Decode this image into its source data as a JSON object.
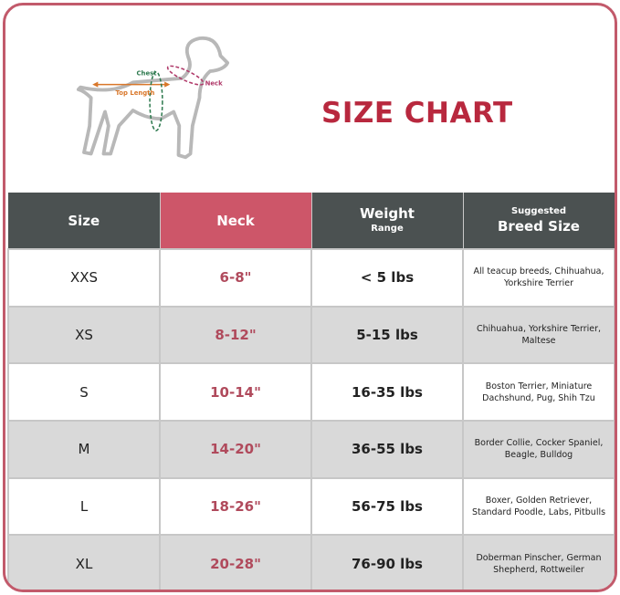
{
  "title": "SIZE CHART",
  "diagram": {
    "chest": "Chest",
    "neck": "Neck",
    "top_length": "Top Length",
    "colors": {
      "chest": "#2e7a4f",
      "neck": "#b03a6a",
      "top_length": "#d9772a",
      "outline": "#b8b8b8"
    }
  },
  "header": {
    "size": "Size",
    "neck": "Neck",
    "weight": "Weight",
    "weight_sub": "Range",
    "breed_sub": "Suggested",
    "breed": "Breed Size"
  },
  "rows": [
    {
      "size": "XXS",
      "neck": "6-8\"",
      "weight": "< 5 lbs",
      "breed": "All teacup breeds, Chihuahua, Yorkshire Terrier"
    },
    {
      "size": "XS",
      "neck": "8-12\"",
      "weight": "5-15 lbs",
      "breed": "Chihuahua, Yorkshire Terrier, Maltese"
    },
    {
      "size": "S",
      "neck": "10-14\"",
      "weight": "16-35 lbs",
      "breed": "Boston Terrier, Miniature Dachshund, Pug, Shih Tzu"
    },
    {
      "size": "M",
      "neck": "14-20\"",
      "weight": "36-55 lbs",
      "breed": "Border Collie, Cocker Spaniel, Beagle, Bulldog"
    },
    {
      "size": "L",
      "neck": "18-26\"",
      "weight": "56-75 lbs",
      "breed": "Boxer, Golden Retriever, Standard Poodle, Labs, Pitbulls"
    },
    {
      "size": "XL",
      "neck": "20-28\"",
      "weight": "76-90 lbs",
      "breed": "Doberman Pinscher, German Shepherd, Rottweiler"
    }
  ],
  "colors": {
    "accent": "#c25a6b",
    "header_bg": "#4b5151",
    "neck_header": "#cd5669",
    "alt_row": "#d9d9d9"
  }
}
